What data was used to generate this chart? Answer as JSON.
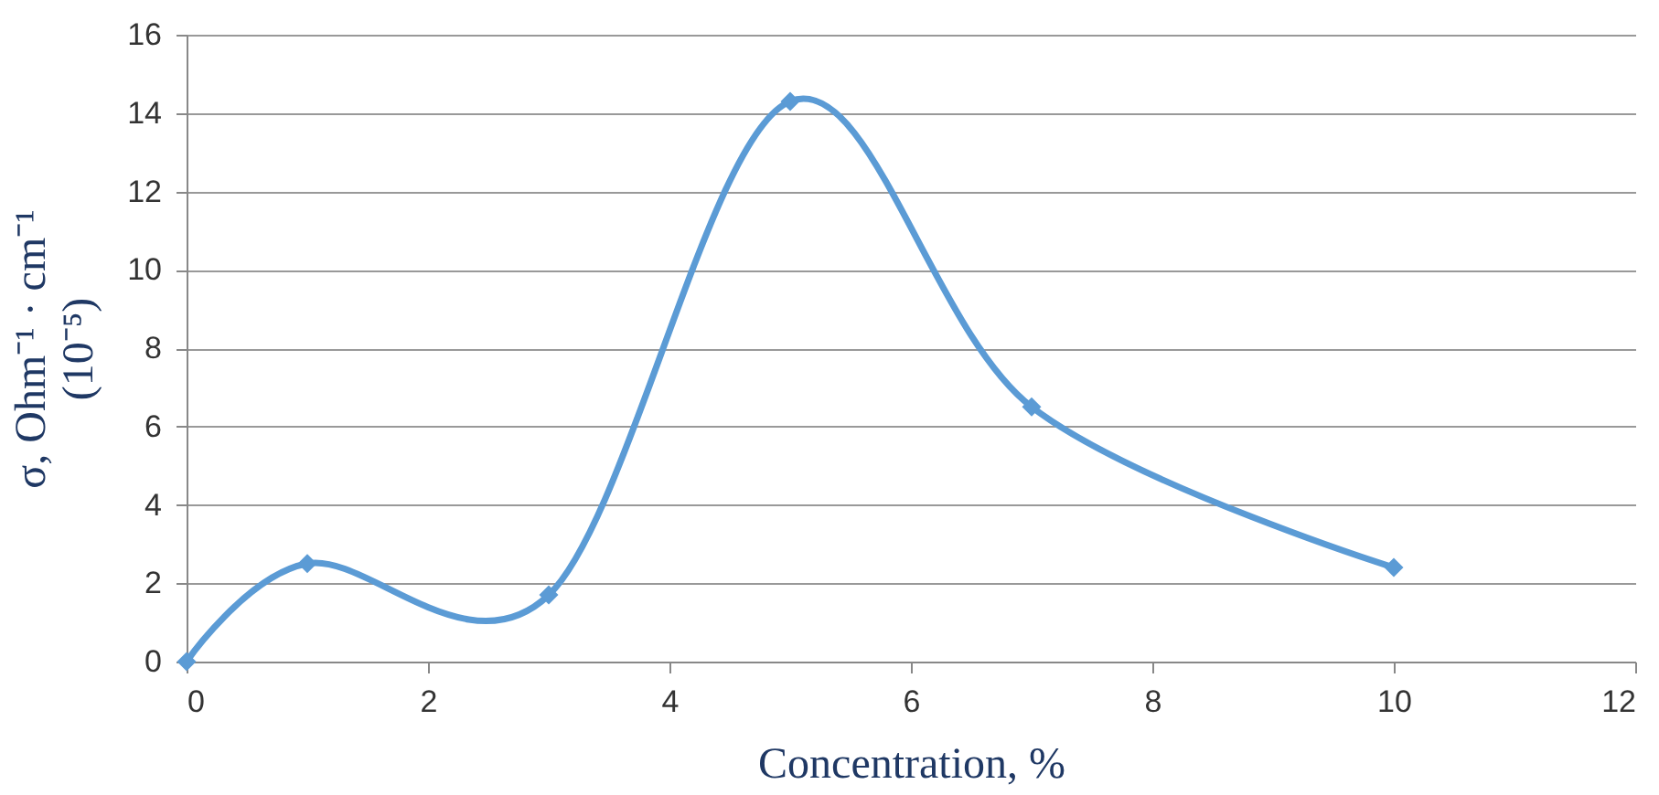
{
  "chart_data": {
    "type": "line",
    "xlabel": "Concentration, %",
    "ylabel": "σ, Ohm⁻¹ · cm⁻¹\n(10⁻⁵)",
    "x": [
      0,
      1,
      3,
      5,
      7,
      10
    ],
    "series": [
      {
        "color": "#5b9bd5",
        "values": [
          0.0,
          2.5,
          1.7,
          14.3,
          6.5,
          2.4
        ]
      }
    ],
    "xlim": [
      0,
      12
    ],
    "xticks": [
      0,
      2,
      4,
      6,
      8,
      10,
      12
    ],
    "ylim": [
      0,
      16
    ],
    "yticks": [
      0,
      2,
      4,
      6,
      8,
      10,
      12,
      14,
      16
    ],
    "grid": "y",
    "marker": "diamond",
    "line_style": "solid"
  }
}
